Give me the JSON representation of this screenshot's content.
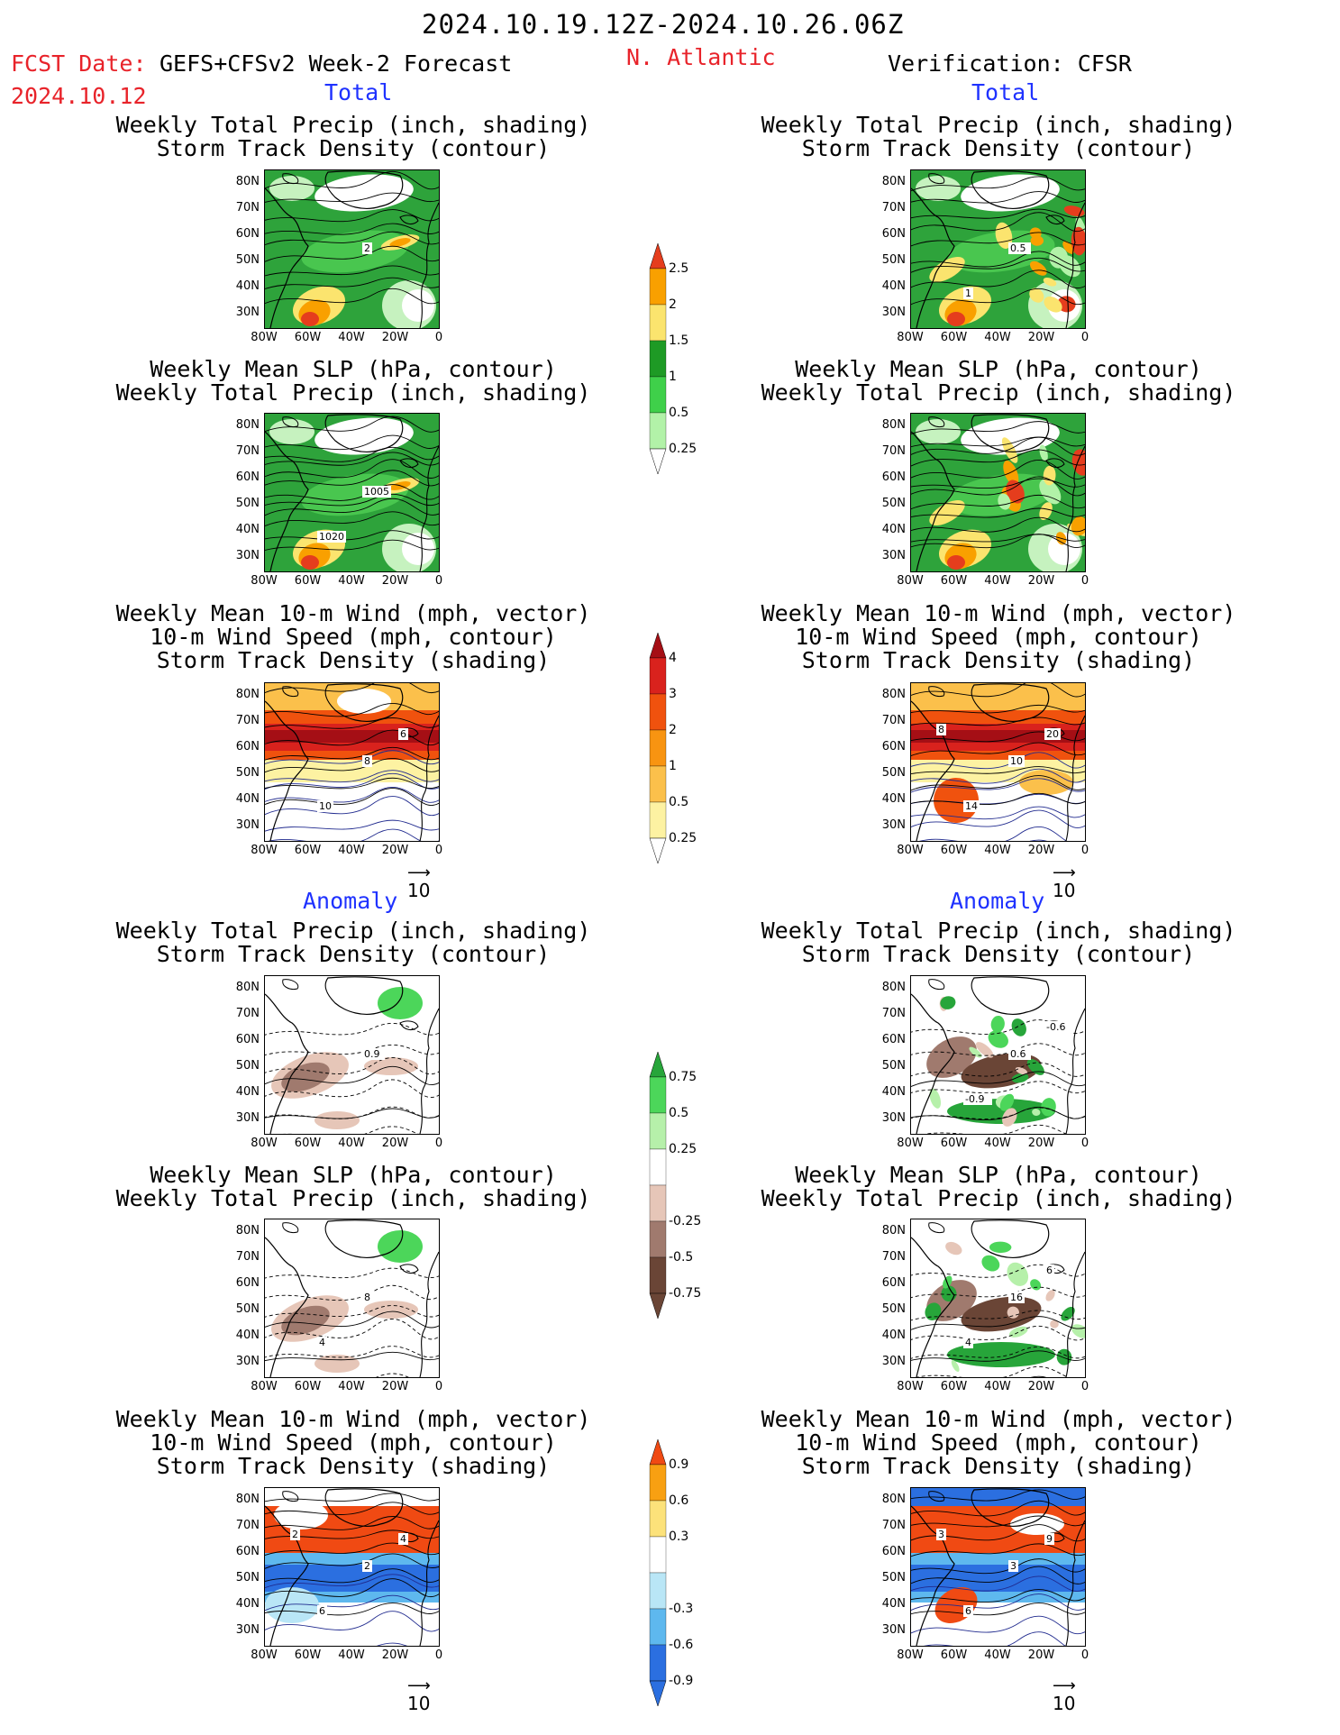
{
  "header": {
    "date_range": "2024.10.19.12Z-2024.10.26.06Z",
    "fcst_label": "FCST Date:",
    "model": "GEFS+CFSv2 Week-2 Forecast",
    "fcst_date": "2024.10.12",
    "region": "N. Atlantic",
    "verification": "Verification: CFSR"
  },
  "sections": {
    "total": "Total",
    "anomaly": "Anomaly"
  },
  "titles": {
    "precip_track": [
      "Weekly Total Precip (inch, shading)",
      "Storm Track Density (contour)"
    ],
    "slp_precip": [
      "Weekly Mean SLP (hPa, contour)",
      "Weekly Total Precip (inch, shading)"
    ],
    "wind": [
      "Weekly Mean 10-m Wind (mph, vector)",
      "10-m Wind Speed (mph, contour)",
      "Storm Track Density (shading)"
    ]
  },
  "axes": {
    "lat_ticks": [
      "80N",
      "70N",
      "60N",
      "50N",
      "40N",
      "30N"
    ],
    "lon_ticks": [
      "80W",
      "60W",
      "40W",
      "20W",
      "0"
    ]
  },
  "vector_ref": "10",
  "colorbars": {
    "precip_total": {
      "labels": [
        "2.5",
        "2",
        "1.5",
        "1",
        "0.5",
        "0.25"
      ],
      "colors": [
        "#e53d1d",
        "#f9a000",
        "#fbe46e",
        "#1e9a25",
        "#3fd04a",
        "#b2f2a8"
      ]
    },
    "track_total": {
      "labels": [
        "4",
        "3",
        "2",
        "1",
        "0.5",
        "0.25"
      ],
      "colors": [
        "#a50f15",
        "#d9221d",
        "#f0520e",
        "#f89411",
        "#fbc04b",
        "#fdf2a2"
      ]
    },
    "precip_anom": {
      "labels": [
        "0.75",
        "0.5",
        "0.25",
        "-0.25",
        "-0.5",
        "-0.75"
      ],
      "colors": [
        "#27a53a",
        "#4cd65a",
        "#b6f0aa",
        "#ffffff",
        "#e6c6b8",
        "#a07a6e",
        "#6a4536"
      ]
    },
    "track_anom": {
      "labels": [
        "0.9",
        "0.6",
        "0.3",
        "-0.3",
        "-0.6",
        "-0.9"
      ],
      "colors": [
        "#f04a13",
        "#f8a012",
        "#fce27a",
        "#ffffff",
        "#b9e6f6",
        "#5eb8ee",
        "#2b6fe0"
      ]
    }
  },
  "panels": {
    "p1": {
      "contour_label": "2"
    },
    "p2": {
      "contour_label": "0.5",
      "contour_label2": "1"
    },
    "p3": {
      "contour_label": "1005",
      "contour_label2": "1020"
    },
    "p5": {
      "contour_label": "8",
      "contour_label2": "10",
      "contour_label3": "6"
    },
    "p6": {
      "contour_label": "10",
      "contour_label2": "14",
      "contour_label3": "20",
      "contour_label4": "8"
    },
    "p7": {
      "contour_label": "0.9"
    },
    "p8": {
      "contour_label": "0.6",
      "contour_label2": "-0.9",
      "contour_label3": "-0.6"
    },
    "p9": {
      "contour_label": "8",
      "contour_label2": "4"
    },
    "p10": {
      "contour_label": "16",
      "contour_label2": "4",
      "contour_label3": "6"
    },
    "p11": {
      "contour_label": "2",
      "contour_label2": "6",
      "contour_label3": "4",
      "contour_label4": "2"
    },
    "p12": {
      "contour_label": "3",
      "contour_label2": "6",
      "contour_label3": "9",
      "contour_label4": "3"
    }
  }
}
